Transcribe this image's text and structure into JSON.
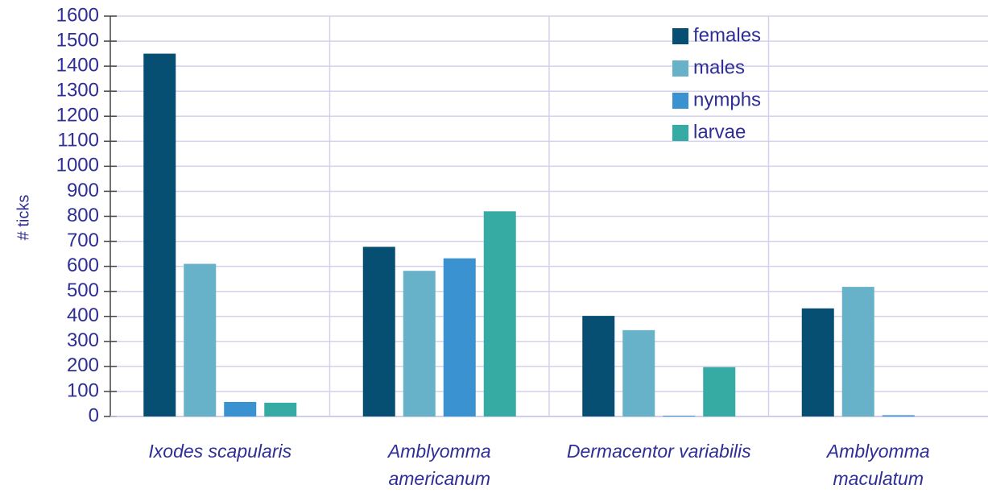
{
  "chart_data": {
    "type": "bar",
    "y_label": "# ticks",
    "categories": [
      "Ixodes scapularis",
      "Amblyomma americanum",
      "Dermacentor variabilis",
      "Amblyomma maculatum"
    ],
    "series": [
      {
        "name": "females",
        "color": "#074f72",
        "values": [
          1450,
          678,
          402,
          432
        ]
      },
      {
        "name": "males",
        "color": "#67b2c9",
        "values": [
          610,
          582,
          345,
          518
        ]
      },
      {
        "name": "nymphs",
        "color": "#3a93d0",
        "values": [
          58,
          632,
          3,
          5
        ]
      },
      {
        "name": "larvae",
        "color": "#36aba3",
        "values": [
          55,
          820,
          197,
          0
        ]
      }
    ],
    "ylim": [
      0,
      1600
    ],
    "yticks": [
      0,
      100,
      200,
      300,
      400,
      500,
      600,
      700,
      800,
      900,
      1000,
      1100,
      1200,
      1300,
      1400,
      1500,
      1600
    ],
    "grid": true,
    "legend": "top-right"
  }
}
